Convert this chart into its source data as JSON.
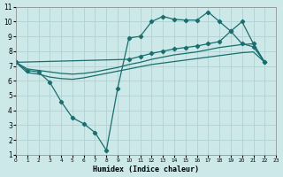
{
  "xlabel": "Humidex (Indice chaleur)",
  "bg_color": "#cce8e8",
  "line_color": "#1a6e6e",
  "grid_color": "#aacece",
  "xlim": [
    0,
    23
  ],
  "ylim": [
    1,
    11
  ],
  "xticks": [
    0,
    1,
    2,
    3,
    4,
    5,
    6,
    7,
    8,
    9,
    10,
    11,
    12,
    13,
    14,
    15,
    16,
    17,
    18,
    19,
    20,
    21,
    22,
    23
  ],
  "yticks": [
    1,
    2,
    3,
    4,
    5,
    6,
    7,
    8,
    9,
    10,
    11
  ],
  "line_zigzag_x": [
    0,
    1,
    2,
    3,
    4,
    5,
    6,
    7,
    8,
    9,
    10,
    11,
    12,
    13,
    14,
    15,
    16,
    17,
    18,
    19,
    20,
    21,
    22
  ],
  "line_zigzag_y": [
    7.25,
    6.7,
    6.6,
    5.9,
    4.6,
    3.5,
    3.1,
    2.5,
    1.3,
    5.5,
    8.9,
    9.0,
    10.0,
    10.35,
    10.15,
    10.1,
    10.1,
    10.65,
    10.0,
    9.35,
    8.5,
    8.3,
    7.25
  ],
  "line_lower_x": [
    0,
    1,
    2,
    3,
    4,
    5,
    6,
    7,
    8,
    9,
    10,
    11,
    12,
    13,
    14,
    15,
    16,
    17,
    18,
    19,
    20,
    21,
    22
  ],
  "line_lower_y": [
    7.25,
    6.55,
    6.45,
    6.25,
    6.15,
    6.1,
    6.2,
    6.35,
    6.5,
    6.65,
    6.8,
    6.95,
    7.1,
    7.2,
    7.3,
    7.4,
    7.5,
    7.6,
    7.7,
    7.8,
    7.9,
    7.95,
    7.25
  ],
  "line_mid_x": [
    0,
    1,
    2,
    3,
    4,
    5,
    6,
    7,
    8,
    9,
    10,
    11,
    12,
    13,
    14,
    15,
    16,
    17,
    18,
    19,
    20,
    21,
    22
  ],
  "line_mid_y": [
    7.25,
    6.8,
    6.7,
    6.6,
    6.5,
    6.45,
    6.5,
    6.6,
    6.75,
    6.9,
    7.1,
    7.25,
    7.45,
    7.6,
    7.75,
    7.85,
    7.95,
    8.1,
    8.25,
    8.35,
    8.45,
    8.5,
    7.25
  ],
  "line_upper_x": [
    0,
    10,
    11,
    12,
    13,
    14,
    15,
    16,
    17,
    18,
    19,
    20,
    21,
    22
  ],
  "line_upper_y": [
    7.25,
    7.45,
    7.65,
    7.85,
    8.0,
    8.15,
    8.25,
    8.35,
    8.5,
    8.65,
    9.35,
    10.0,
    8.5,
    7.25
  ]
}
